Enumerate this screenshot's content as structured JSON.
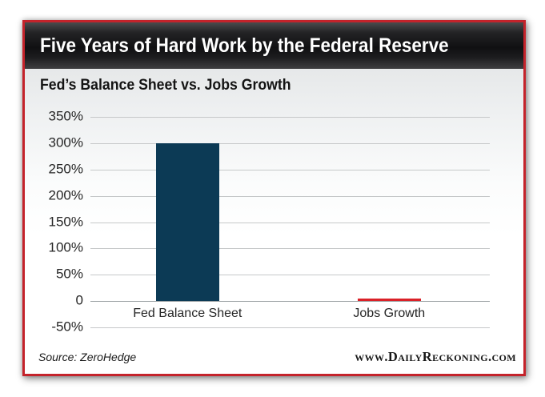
{
  "header": {
    "title": "Five Years of Hard Work by the Federal Reserve"
  },
  "chart": {
    "subtitle": "Fed’s Balance Sheet vs. Jobs Growth"
  },
  "chart_data": {
    "type": "bar",
    "title": "Five Years of Hard Work by the Federal Reserve",
    "subtitle": "Fed’s Balance Sheet vs. Jobs Growth",
    "categories": [
      "Fed Balance Sheet",
      "Jobs Growth"
    ],
    "values": [
      300,
      4
    ],
    "unit": "%",
    "ylim": [
      -50,
      350
    ],
    "yticks": [
      {
        "value": 350,
        "label": "350%"
      },
      {
        "value": 300,
        "label": "300%"
      },
      {
        "value": 250,
        "label": "250%"
      },
      {
        "value": 200,
        "label": "200%"
      },
      {
        "value": 150,
        "label": "150%"
      },
      {
        "value": 100,
        "label": "100%"
      },
      {
        "value": 50,
        "label": "50%"
      },
      {
        "value": 0,
        "label": "0"
      },
      {
        "value": -50,
        "label": "-50%"
      }
    ],
    "grid": "horizontal",
    "legend": "none",
    "bar_colors": [
      "#0c3a55",
      "#da2128"
    ],
    "accent_border_color": "#c4232b"
  },
  "footer": {
    "source": "Source: ZeroHedge",
    "website": "www.DailyReckoning.com"
  }
}
